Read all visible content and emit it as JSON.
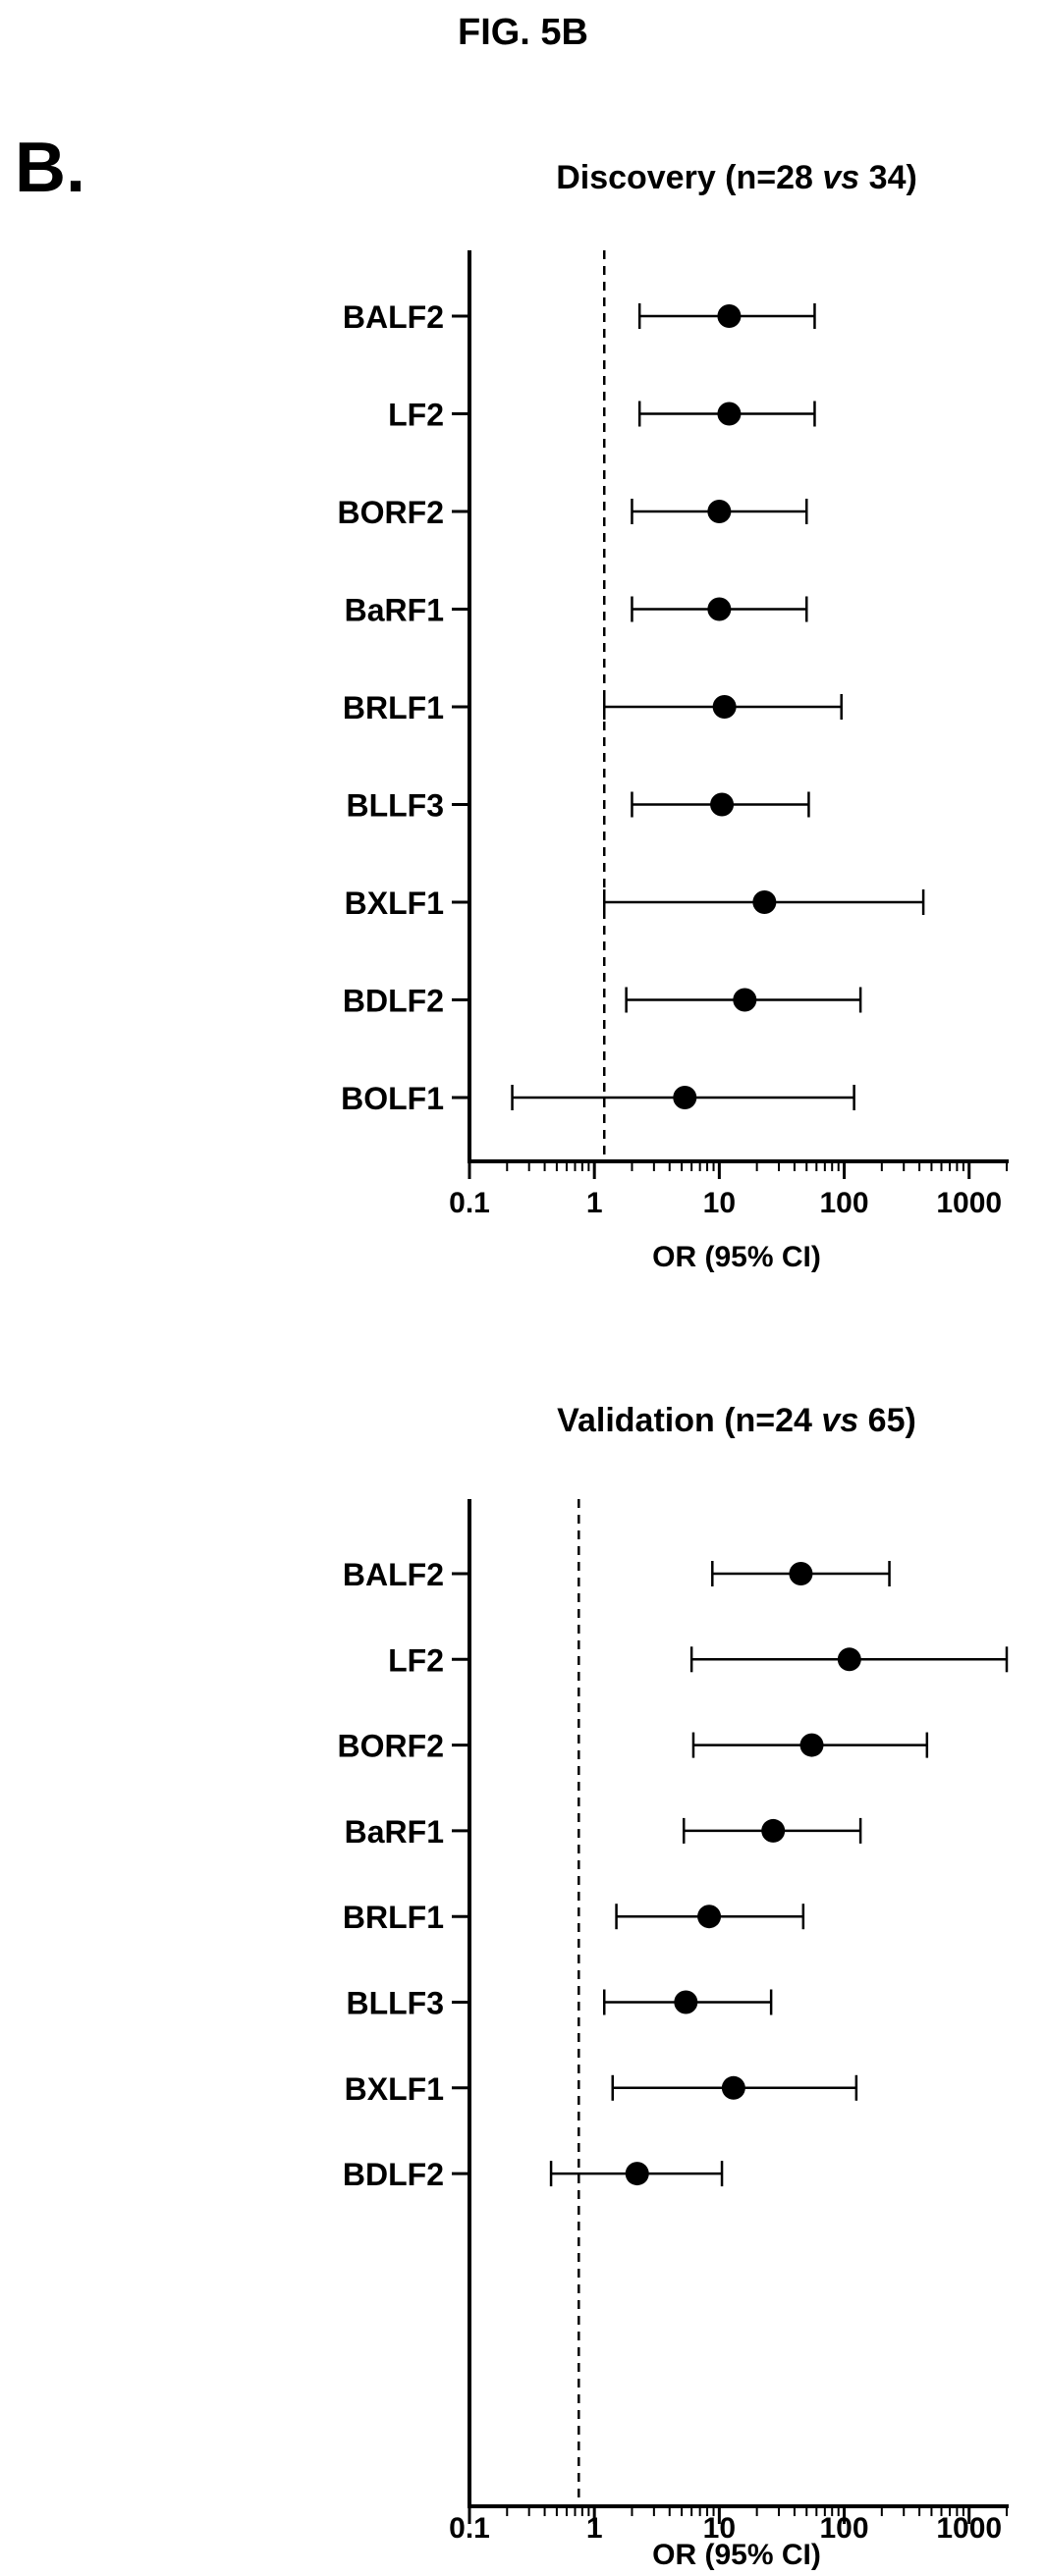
{
  "figure": {
    "title": "FIG. 5B",
    "panel_label": "B."
  },
  "chart_data": [
    {
      "type": "forest",
      "title": "Discovery (n=28 ",
      "title_italic": "vs",
      "title_suffix": " 34)",
      "xlabel": "OR (95% CI)",
      "ylabel": "",
      "xscale": "log",
      "xlim": [
        0.1,
        2000
      ],
      "xticks": [
        0.1,
        1,
        10,
        100,
        1000
      ],
      "xtick_labels": [
        "0.1",
        "1",
        "10",
        "100",
        "1000"
      ],
      "reference_line": 1.2,
      "grid": false,
      "categories": [
        "BALF2",
        "LF2",
        "BORF2",
        "BaRF1",
        "BRLF1",
        "BLLF3",
        "BXLF1",
        "BDLF2",
        "BOLF1"
      ],
      "or": [
        12,
        12,
        10,
        10,
        11,
        10.5,
        23,
        16,
        5.3
      ],
      "ci_low": [
        2.3,
        2.3,
        2.0,
        2.0,
        1.2,
        2.0,
        1.2,
        1.8,
        0.22
      ],
      "ci_high": [
        58,
        58,
        50,
        50,
        95,
        52,
        430,
        135,
        120
      ]
    },
    {
      "type": "forest",
      "title": "Validation (n=24 ",
      "title_italic": "vs",
      "title_suffix": " 65)",
      "xlabel": "OR (95% CI)",
      "ylabel": "",
      "xscale": "log",
      "xlim": [
        0.1,
        2000
      ],
      "xticks": [
        0.1,
        1,
        10,
        100,
        1000
      ],
      "xtick_labels": [
        "0.1",
        "1",
        "10",
        "100",
        "1000"
      ],
      "reference_line": 0.75,
      "grid": false,
      "categories": [
        "BALF2",
        "LF2",
        "BORF2",
        "BaRF1",
        "BRLF1",
        "BLLF3",
        "BXLF1",
        "BDLF2"
      ],
      "or": [
        45,
        110,
        55,
        27,
        8.3,
        5.4,
        13,
        2.2
      ],
      "ci_low": [
        8.8,
        6.0,
        6.2,
        5.2,
        1.5,
        1.2,
        1.4,
        0.45
      ],
      "ci_high": [
        230,
        2000,
        460,
        135,
        47,
        26,
        125,
        10.5
      ]
    }
  ]
}
